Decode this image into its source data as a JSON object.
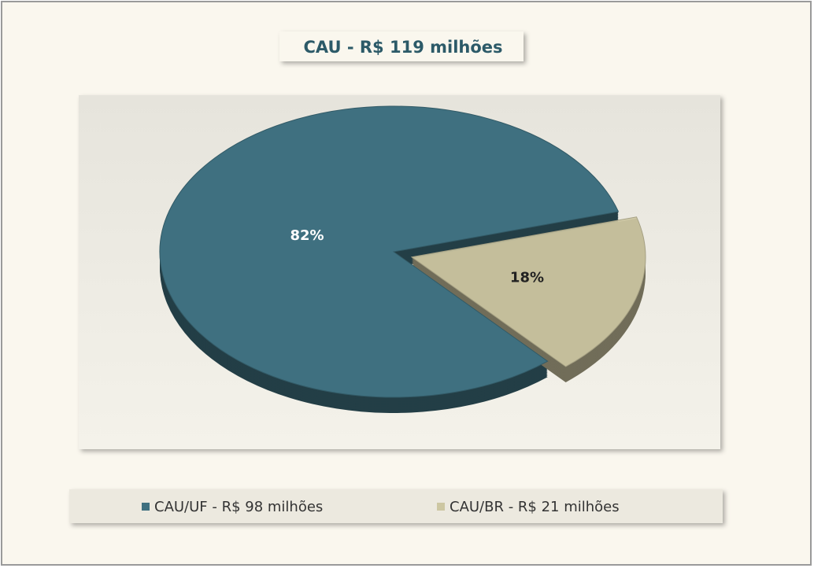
{
  "chart_data": {
    "type": "pie",
    "title": "CAU - R$ 119 milhões",
    "series": [
      {
        "name": "CAU/UF - R$ 98 milhões",
        "color": "#3f7080",
        "values": [
          82
        ],
        "value_labels": [
          "82%"
        ]
      },
      {
        "name": "CAU/BR - R$ 21 milhões",
        "color": "#cdc7a2",
        "values": [
          18
        ],
        "value_labels": [
          "18%"
        ]
      }
    ],
    "legend": "bottom"
  }
}
